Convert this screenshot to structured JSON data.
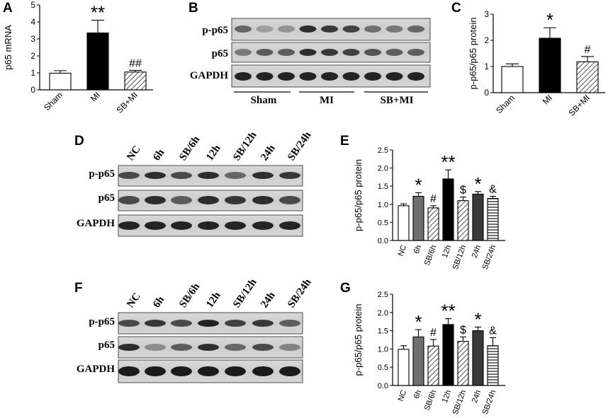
{
  "panel_letters": [
    "A",
    "B",
    "C",
    "D",
    "E",
    "F",
    "G"
  ],
  "blots": {
    "B": {
      "rows": [
        "p-p65",
        "p65",
        "GAPDH"
      ],
      "groups": [
        "Sham",
        "MI",
        "SB+MI"
      ]
    },
    "D": {
      "rows": [
        "p-p65",
        "p65",
        "GAPDH"
      ],
      "lanes": [
        "NC",
        "6h",
        "SB/6h",
        "12h",
        "SB/12h",
        "24h",
        "SB/24h"
      ]
    },
    "F": {
      "rows": [
        "p-p65",
        "p65",
        "GAPDH"
      ],
      "lanes": [
        "NC",
        "6h",
        "SB/6h",
        "12h",
        "SB/12h",
        "24h",
        "SB/24h"
      ]
    }
  },
  "chart_data": [
    {
      "panel": "A",
      "type": "bar",
      "ylabel": "p65 mRNA",
      "ylim": [
        0,
        5
      ],
      "yticks": [
        0,
        1,
        2,
        3,
        4,
        5
      ],
      "categories": [
        "Sham",
        "MI",
        "SB+MI"
      ],
      "values": [
        0.98,
        3.35,
        1.05
      ],
      "errors": [
        0.15,
        0.75,
        0.1
      ],
      "fills": [
        "white",
        "black",
        "hatch"
      ],
      "annotations": [
        "",
        "**",
        "##"
      ]
    },
    {
      "panel": "C",
      "type": "bar",
      "ylabel": "p-p65/p65 protein",
      "ylim": [
        0,
        3
      ],
      "yticks": [
        0,
        1,
        2,
        3
      ],
      "categories": [
        "Sham",
        "MI",
        "SB+MI"
      ],
      "values": [
        1.0,
        2.08,
        1.18
      ],
      "errors": [
        0.1,
        0.4,
        0.2
      ],
      "fills": [
        "white",
        "black",
        "hatch"
      ],
      "annotations": [
        "",
        "*",
        "#"
      ]
    },
    {
      "panel": "E",
      "type": "bar",
      "ylabel": "p-p65/p65 protein",
      "ylim": [
        0,
        2.5
      ],
      "yticks": [
        0.0,
        0.5,
        1.0,
        1.5,
        2.0,
        2.5
      ],
      "categories": [
        "NC",
        "6h",
        "SB/6h",
        "12h",
        "SB/12h",
        "24h",
        "SB/24h"
      ],
      "values": [
        0.96,
        1.22,
        0.9,
        1.7,
        1.1,
        1.28,
        1.16
      ],
      "errors": [
        0.05,
        0.1,
        0.06,
        0.25,
        0.1,
        0.07,
        0.06
      ],
      "fills": [
        "white",
        "gray",
        "hatch",
        "black",
        "hatch",
        "darkgray",
        "hstripe"
      ],
      "annotations": [
        "",
        "*",
        "#",
        "**",
        "$",
        "*",
        "&"
      ]
    },
    {
      "panel": "G",
      "type": "bar",
      "ylabel": "p-p65/p65 protein",
      "ylim": [
        0,
        2.5
      ],
      "yticks": [
        0.0,
        0.5,
        1.0,
        1.5,
        2.0,
        2.5
      ],
      "categories": [
        "NC",
        "6h",
        "SB/6h",
        "12h",
        "SB/12h",
        "24h",
        "SB/24h"
      ],
      "values": [
        0.99,
        1.33,
        1.08,
        1.67,
        1.21,
        1.5,
        1.09
      ],
      "errors": [
        0.1,
        0.2,
        0.18,
        0.16,
        0.12,
        0.1,
        0.22
      ],
      "fills": [
        "white",
        "gray",
        "hatch",
        "black",
        "hatch",
        "darkgray",
        "hstripe"
      ],
      "annotations": [
        "",
        "*",
        "#",
        "**",
        "$",
        "*",
        "&"
      ]
    }
  ]
}
